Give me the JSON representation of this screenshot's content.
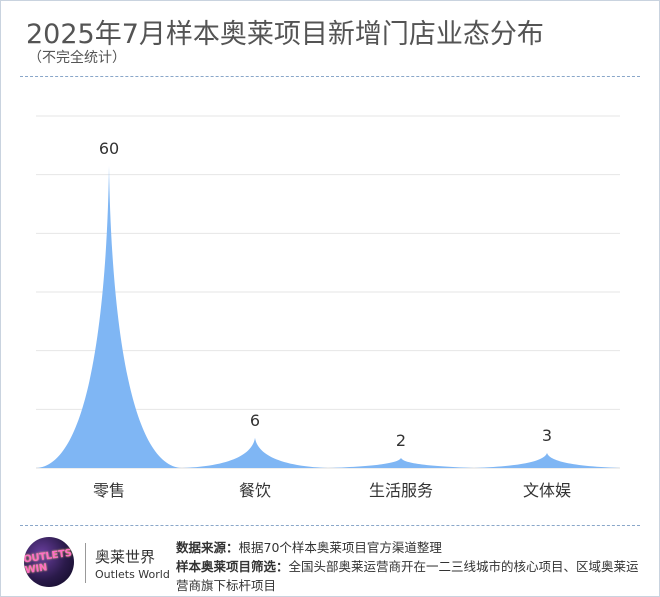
{
  "title": "2025年7月样本奥莱项目新增门店业态分布",
  "subtitle": "（不完全统计）",
  "chart_data": {
    "type": "area",
    "style": "peaked spikes per category",
    "categories": [
      "零售",
      "餐饮",
      "生活服务",
      "文体娱"
    ],
    "values": [
      60,
      6,
      2,
      3
    ],
    "ylim": [
      0,
      60
    ],
    "grid": true,
    "color": "#7fb6f4"
  },
  "footer": {
    "brand_cn": "奥莱世界",
    "brand_en": "Outlets World",
    "logo_text": "OUTLETS WIN",
    "source_label": "数据来源：",
    "source_text": "根据70个样本奥莱项目官方渠道整理",
    "filter_label": "样本奥莱项目筛选：",
    "filter_text": "全国头部奥莱运营商开在一二三线城市的核心项目、区域奥莱运营商旗下标杆项目"
  }
}
